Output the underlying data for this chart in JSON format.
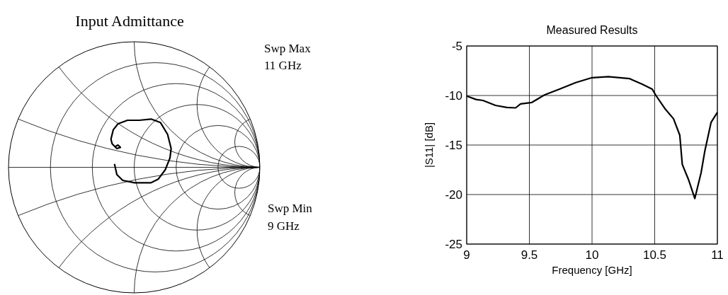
{
  "chart_data": [
    {
      "type": "other",
      "title": "Input Admittance",
      "annotations": [
        "Swp Max",
        "11 GHz",
        "Swp Min",
        "9 GHz"
      ]
    },
    {
      "type": "line",
      "title": "Measured Results",
      "xlabel": "Frequency [GHz]",
      "ylabel": "|S11| [dB]",
      "xlim": [
        9,
        11
      ],
      "ylim": [
        -25,
        -5
      ],
      "xticks": [
        9,
        9.5,
        10,
        10.5,
        11
      ],
      "yticks": [
        -25,
        -20,
        -15,
        -10,
        -5
      ],
      "grid": true,
      "series": [
        {
          "color": "#000000",
          "x": [
            9,
            9.075,
            9.13,
            9.23,
            9.32,
            9.39,
            9.43,
            9.52,
            9.62,
            9.74,
            9.87,
            10.0,
            10.13,
            10.3,
            10.4,
            10.48,
            10.51,
            10.58,
            10.65,
            10.7,
            10.72,
            10.77,
            10.82,
            10.87,
            10.9,
            10.95,
            11
          ],
          "values": [
            -10.05,
            -10.4,
            -10.5,
            -11.0,
            -11.2,
            -11.25,
            -10.85,
            -10.7,
            -9.95,
            -9.35,
            -8.7,
            -8.2,
            -8.1,
            -8.3,
            -8.85,
            -9.35,
            -10.0,
            -11.3,
            -12.35,
            -14.0,
            -16.95,
            -18.5,
            -20.4,
            -17.8,
            -15.6,
            -12.7,
            -11.7
          ]
        }
      ]
    }
  ]
}
